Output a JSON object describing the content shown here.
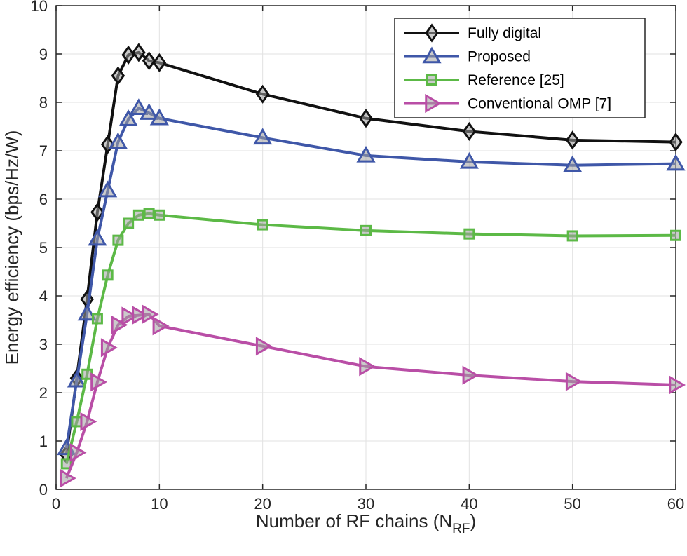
{
  "chart_data": {
    "type": "line",
    "title": "",
    "xlabel": "Number of RF chains (N",
    "xlabel_sub": "RF",
    "xlabel_close": ")",
    "ylabel": "Energy efficiency (bps/Hz/W)",
    "xlim": [
      0,
      60
    ],
    "ylim": [
      0,
      10
    ],
    "xticks": [
      0,
      10,
      20,
      30,
      40,
      50,
      60
    ],
    "yticks": [
      0,
      1,
      2,
      3,
      4,
      5,
      6,
      7,
      8,
      9,
      10
    ],
    "grid": true,
    "legend_position": "top-right",
    "x": [
      1,
      2,
      3,
      4,
      5,
      6,
      7,
      8,
      9,
      10,
      20,
      30,
      40,
      50,
      60
    ],
    "series": [
      {
        "name": "Fully digital",
        "color": "#111111",
        "marker": "diamond",
        "values": [
          0.72,
          2.3,
          3.93,
          5.73,
          7.13,
          8.55,
          8.98,
          9.03,
          8.86,
          8.82,
          8.17,
          7.67,
          7.4,
          7.22,
          7.18
        ]
      },
      {
        "name": "Proposed",
        "color": "#3f57a8",
        "marker": "triangle-up",
        "values": [
          0.85,
          2.25,
          3.63,
          5.18,
          6.18,
          7.18,
          7.65,
          7.88,
          7.78,
          7.67,
          7.27,
          6.9,
          6.77,
          6.7,
          6.73
        ]
      },
      {
        "name": "Reference [25]",
        "color": "#5cb946",
        "marker": "square",
        "values": [
          0.53,
          1.4,
          2.38,
          3.53,
          4.43,
          5.15,
          5.5,
          5.67,
          5.7,
          5.67,
          5.47,
          5.35,
          5.28,
          5.24,
          5.25
        ]
      },
      {
        "name": "Conventional OMP [7]",
        "color": "#b94ea6",
        "marker": "triangle-right",
        "values": [
          0.23,
          0.76,
          1.4,
          2.22,
          2.93,
          3.4,
          3.58,
          3.6,
          3.62,
          3.38,
          2.96,
          2.54,
          2.36,
          2.23,
          2.16
        ]
      }
    ]
  }
}
